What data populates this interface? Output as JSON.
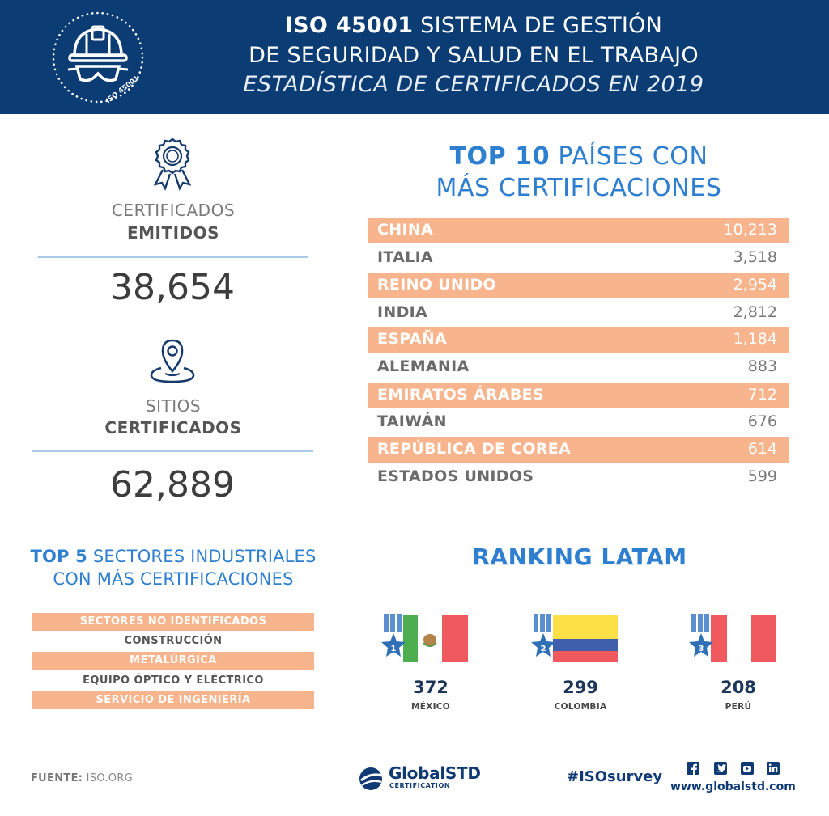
{
  "header": {
    "title_bold": "ISO 45001",
    "title_rest": " SISTEMA DE GESTIÓN",
    "title_line2": "DE SEGURIDAD Y SALUD EN EL TRABAJO",
    "subtitle": "ESTADÍSTICA DE CERTIFICADOS EN 2019",
    "badge_text": "ISO 45001"
  },
  "stats": {
    "certificates": {
      "label": "CERTIFICADOS",
      "strong": "EMITIDOS",
      "value": "38,654"
    },
    "sites": {
      "label": "SITIOS",
      "strong": "CERTIFICADOS",
      "value": "62,889"
    }
  },
  "top10": {
    "title_bold": "TOP 10",
    "title_rest": " PAÍSES CON",
    "title_line2": "MÁS CERTIFICACIONES",
    "rows": [
      {
        "name": "CHINA",
        "value": "10,213"
      },
      {
        "name": "ITALIA",
        "value": "3,518"
      },
      {
        "name": "REINO UNIDO",
        "value": "2,954"
      },
      {
        "name": "INDIA",
        "value": "2,812"
      },
      {
        "name": "ESPAÑA",
        "value": "1,184"
      },
      {
        "name": "ALEMANIA",
        "value": "883"
      },
      {
        "name": "EMIRATOS ÁRABES",
        "value": "712"
      },
      {
        "name": "TAIWÁN",
        "value": "676"
      },
      {
        "name": "REPÚBLICA DE COREA",
        "value": "614"
      },
      {
        "name": "ESTADOS UNIDOS",
        "value": "599"
      }
    ]
  },
  "top5": {
    "title_bold": "TOP 5",
    "title_rest": " SECTORES INDUSTRIALES",
    "title_line2": "CON MÁS CERTIFICACIONES",
    "rows": [
      "SECTORES NO IDENTIFICADOS",
      "CONSTRUCCIÓN",
      "METALÚRGICA",
      "EQUIPO ÓPTICO Y ELÉCTRICO",
      "SERVICIO DE INGENIERÍA"
    ]
  },
  "ranking": {
    "title": "RANKING LATAM",
    "items": [
      {
        "rank": "1",
        "value": "372",
        "country": "MÉXICO"
      },
      {
        "rank": "2",
        "value": "299",
        "country": "COLOMBIA"
      },
      {
        "rank": "3",
        "value": "208",
        "country": "PERÚ"
      }
    ]
  },
  "footer": {
    "source_label": "FUENTE:",
    "source_value": " ISO.ORG",
    "logo_name": "GlobalSTD",
    "logo_sub": "CERTIFICATION",
    "hashtag": "#ISOsurvey",
    "website": "www.globalstd.com",
    "social_icons": [
      "facebook-icon",
      "twitter-icon",
      "youtube-icon",
      "linkedin-icon"
    ]
  },
  "colors": {
    "navy": "#0b3c74",
    "accent_blue": "#2f7fd1",
    "salmon": "#f8b48c",
    "rule_blue": "#a9c8ea"
  }
}
